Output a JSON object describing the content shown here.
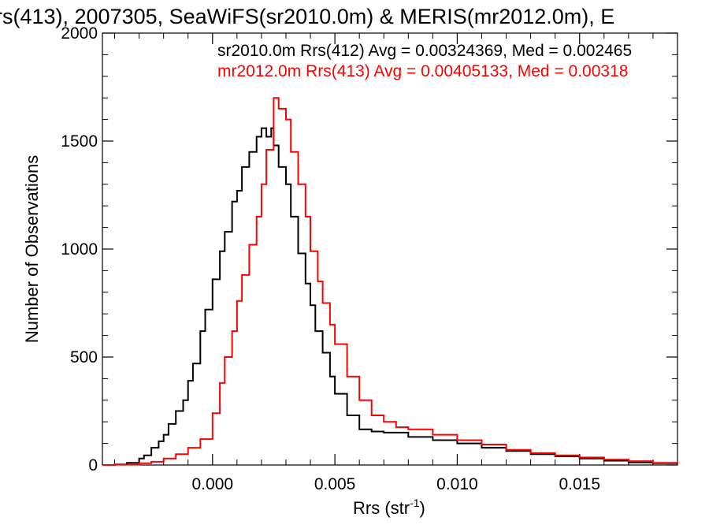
{
  "chart_data": {
    "type": "line",
    "title": "rs(413), 2007305, SeaWiFS(sr2010.0m) & MERIS(mr2012.0m), E",
    "xlabel": "Rrs (str",
    "xlabel_sup": "-1",
    "xlabel_end": ")",
    "ylabel": "Number of Observations",
    "xlim": [
      -0.0045,
      0.019
    ],
    "ylim": [
      0,
      2000
    ],
    "x_ticks": [
      0.0,
      0.005,
      0.01,
      0.015
    ],
    "x_tick_labels": [
      "0.000",
      "0.005",
      "0.010",
      "0.015"
    ],
    "y_ticks": [
      0,
      500,
      1000,
      1500,
      2000
    ],
    "y_tick_labels": [
      "0",
      "500",
      "1000",
      "1500",
      "2000"
    ],
    "grid": false,
    "legend_position": "top-right",
    "series": [
      {
        "name": "sr2010.0m Rrs(412) Avg = 0.00324369, Med = 0.002465",
        "color": "#000000",
        "x": [
          -0.0045,
          -0.004,
          -0.0035,
          -0.003,
          -0.0028,
          -0.0025,
          -0.0022,
          -0.002,
          -0.0018,
          -0.0015,
          -0.0012,
          -0.001,
          -0.0008,
          -0.0005,
          -0.0003,
          0.0,
          0.0003,
          0.0005,
          0.0008,
          0.001,
          0.0012,
          0.0015,
          0.0018,
          0.002,
          0.0022,
          0.0024,
          0.0025,
          0.0027,
          0.003,
          0.0032,
          0.0035,
          0.0038,
          0.004,
          0.0042,
          0.0045,
          0.0048,
          0.005,
          0.0055,
          0.006,
          0.0065,
          0.007,
          0.008,
          0.009,
          0.01,
          0.011,
          0.012,
          0.013,
          0.014,
          0.015,
          0.016,
          0.017,
          0.018,
          0.019
        ],
        "values": [
          0,
          3,
          10,
          30,
          45,
          80,
          110,
          140,
          190,
          250,
          300,
          390,
          470,
          620,
          720,
          860,
          990,
          1080,
          1220,
          1270,
          1380,
          1450,
          1520,
          1560,
          1520,
          1560,
          1480,
          1380,
          1300,
          1150,
          980,
          840,
          740,
          620,
          520,
          410,
          330,
          230,
          165,
          155,
          150,
          130,
          115,
          100,
          80,
          65,
          50,
          40,
          30,
          20,
          12,
          8,
          5
        ]
      },
      {
        "name": "mr2012.0m Rrs(413) Avg = 0.00405133, Med = 0.00318",
        "color": "#ff0000",
        "x": [
          -0.0045,
          -0.004,
          -0.003,
          -0.0025,
          -0.002,
          -0.0015,
          -0.001,
          -0.0005,
          0.0,
          0.0003,
          0.0005,
          0.0008,
          0.001,
          0.0012,
          0.0015,
          0.0018,
          0.002,
          0.0022,
          0.0025,
          0.0027,
          0.003,
          0.0032,
          0.0035,
          0.0038,
          0.004,
          0.0043,
          0.0045,
          0.0048,
          0.005,
          0.0055,
          0.006,
          0.0065,
          0.007,
          0.0075,
          0.008,
          0.009,
          0.01,
          0.011,
          0.012,
          0.013,
          0.014,
          0.015,
          0.016,
          0.017,
          0.018,
          0.019
        ],
        "values": [
          0,
          2,
          8,
          15,
          30,
          50,
          80,
          120,
          240,
          380,
          500,
          620,
          760,
          880,
          1020,
          1150,
          1300,
          1460,
          1700,
          1650,
          1600,
          1450,
          1300,
          1150,
          990,
          850,
          750,
          650,
          560,
          410,
          300,
          230,
          200,
          175,
          165,
          140,
          115,
          95,
          70,
          55,
          45,
          35,
          25,
          18,
          10,
          6
        ]
      }
    ]
  }
}
